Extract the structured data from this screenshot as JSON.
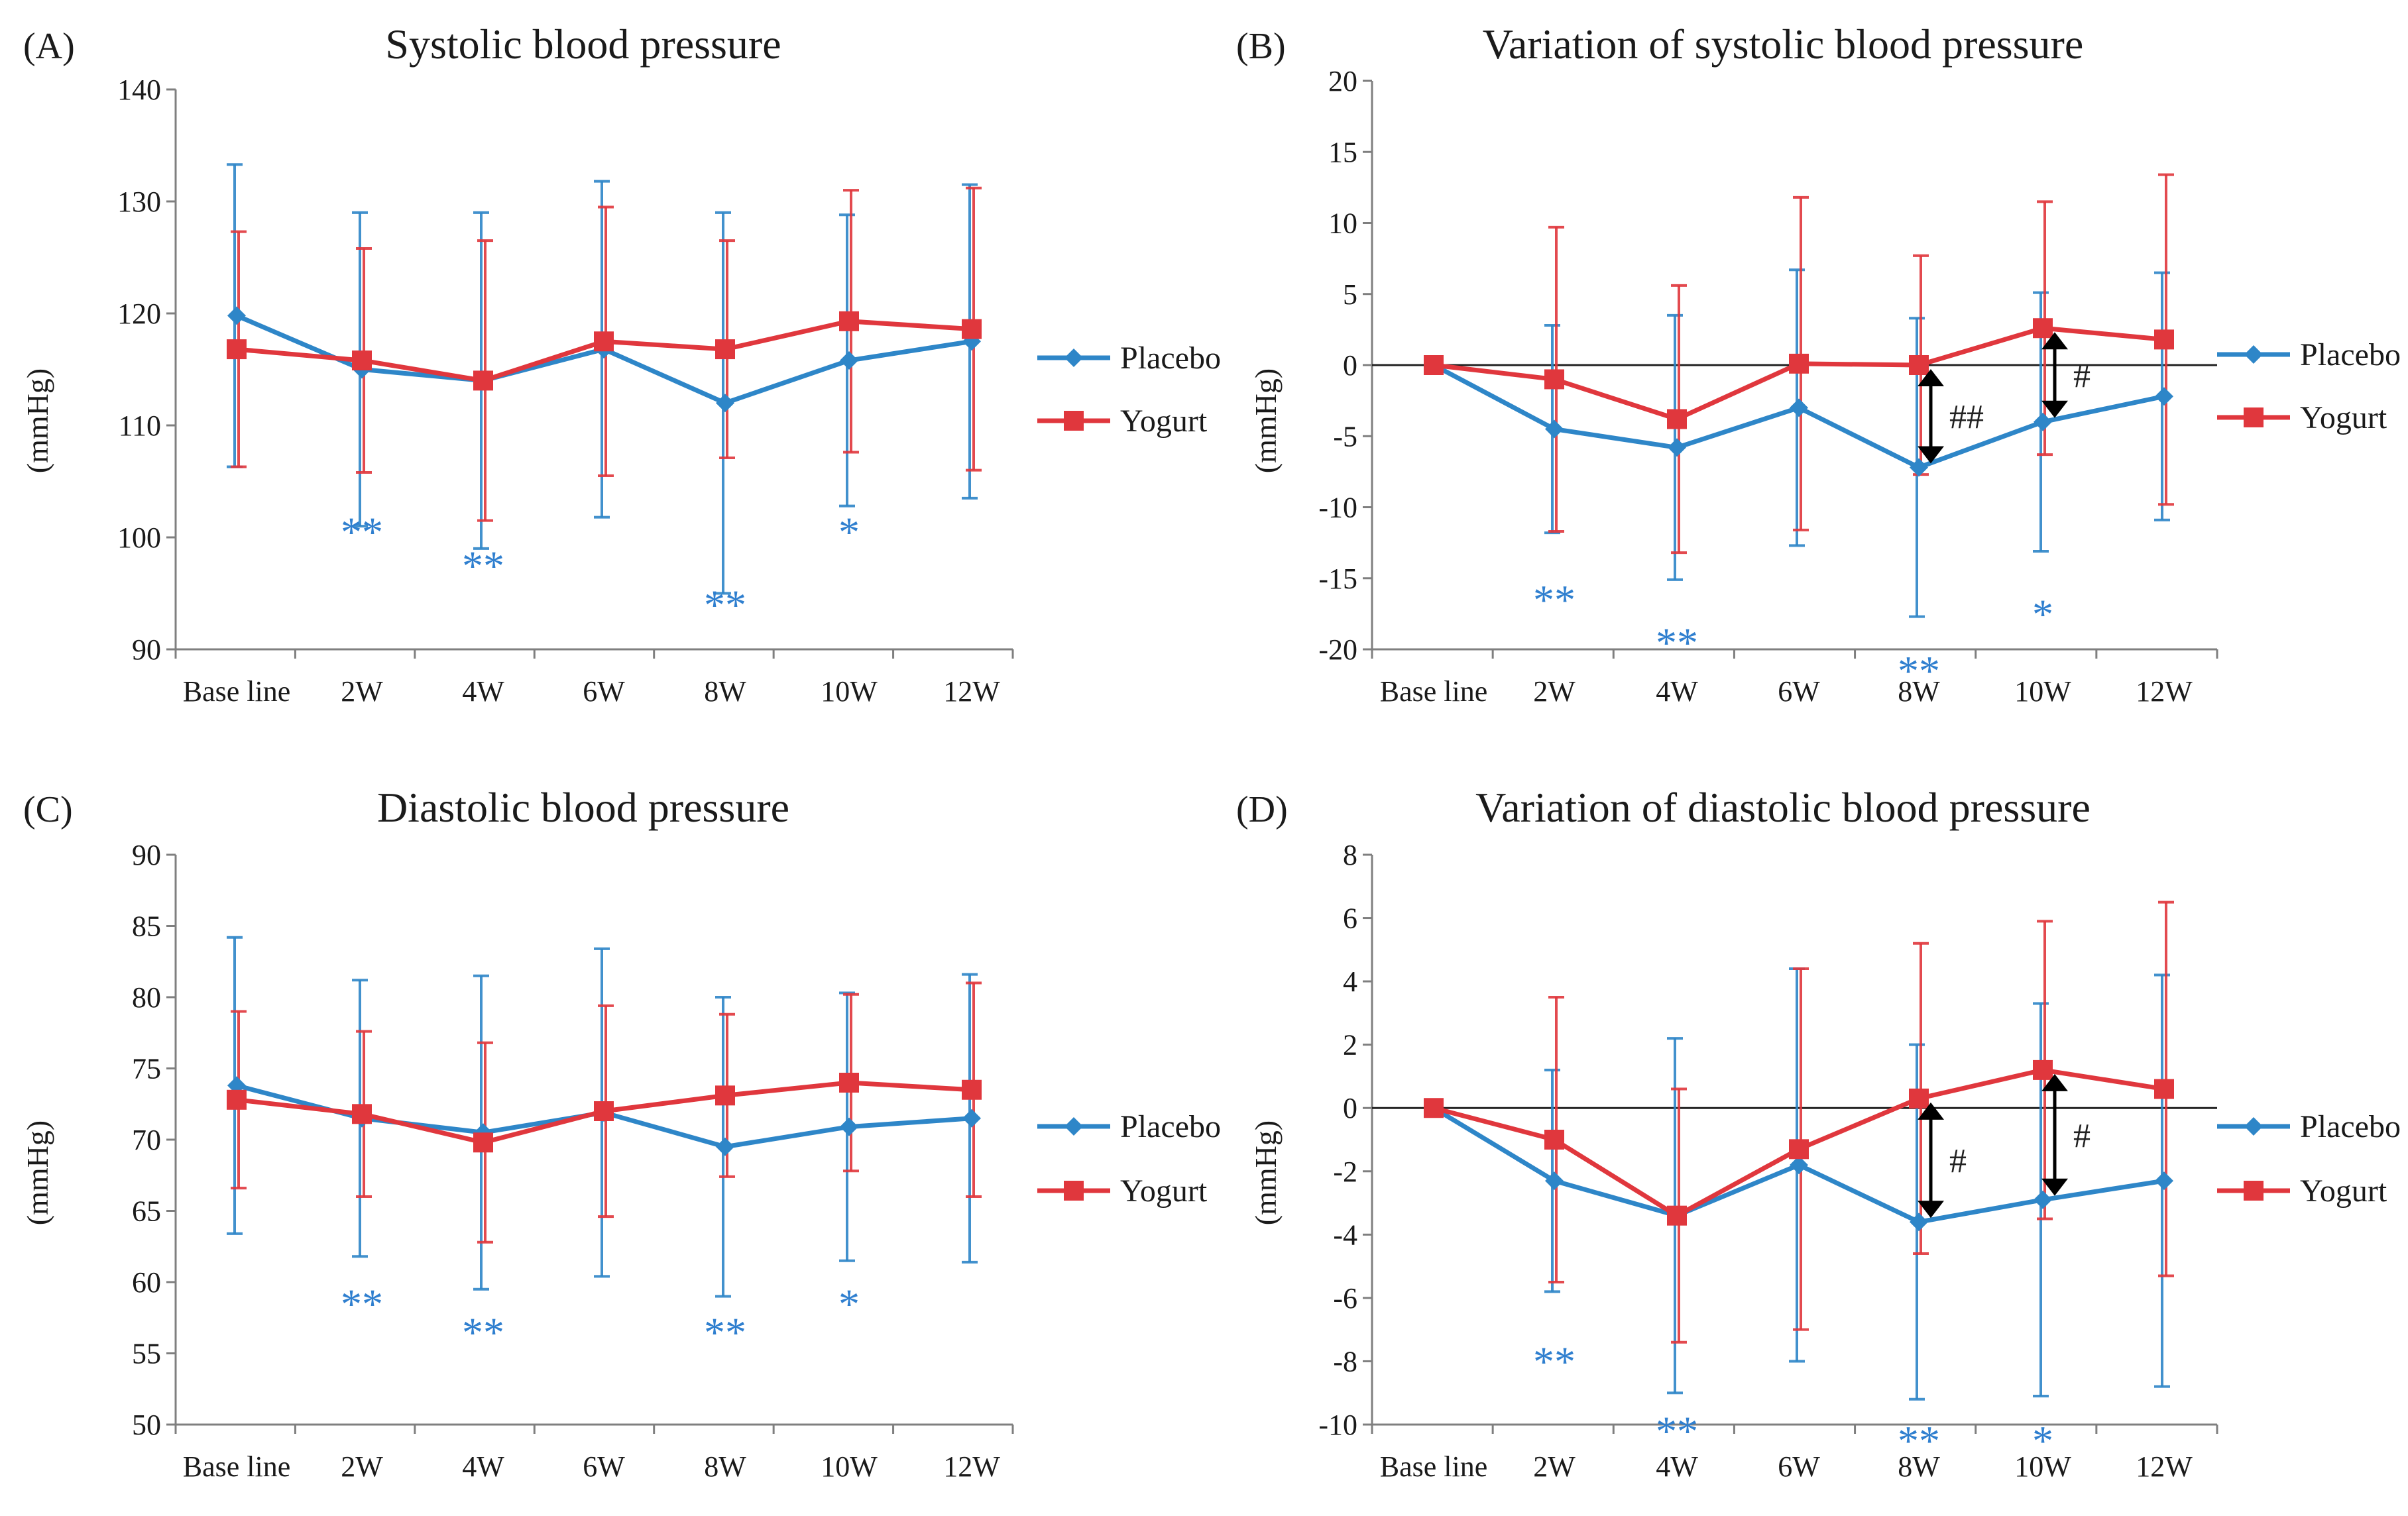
{
  "colors": {
    "placebo": "#2e86c8",
    "yogurt": "#e0373d",
    "sig": "#2f7fcf",
    "arrow": "#000000"
  },
  "chart_data": [
    {
      "panel": "(A)",
      "type": "line",
      "title": "Systolic blood pressure",
      "ylabel": "(mmHg)",
      "categories": [
        "Base line",
        "2W",
        "4W",
        "6W",
        "8W",
        "10W",
        "12W"
      ],
      "ylim": [
        90,
        140
      ],
      "yticks": [
        90,
        100,
        110,
        120,
        130,
        140
      ],
      "series": [
        {
          "name": "Placebo",
          "values": [
            119.8,
            115.0,
            114.0,
            116.8,
            112.0,
            115.8,
            117.5
          ],
          "err": [
            13.5,
            14.0,
            15.0,
            15.0,
            17.0,
            13.0,
            14.0
          ]
        },
        {
          "name": "Yogurt",
          "values": [
            116.8,
            115.8,
            114.0,
            117.5,
            116.8,
            119.3,
            118.6
          ],
          "err": [
            10.5,
            10.0,
            12.5,
            12.0,
            9.7,
            11.7,
            12.6
          ]
        }
      ],
      "significance": [
        {
          "category": "2W",
          "label": "**",
          "value": 100.5
        },
        {
          "category": "4W",
          "label": "**",
          "value": 97.5
        },
        {
          "category": "8W",
          "label": "**",
          "value": 94.0
        },
        {
          "category": "10W",
          "label": "*",
          "value": 100.5
        }
      ],
      "comparisons": [],
      "legend": [
        "Placebo",
        "Yogurt"
      ]
    },
    {
      "panel": "(B)",
      "type": "line",
      "title": "Variation of systolic blood pressure",
      "ylabel": "(mmHg)",
      "categories": [
        "Base line",
        "2W",
        "4W",
        "6W",
        "8W",
        "10W",
        "12W"
      ],
      "ylim": [
        -20,
        20
      ],
      "yticks": [
        -20,
        -15,
        -10,
        -5,
        0,
        5,
        10,
        15,
        20
      ],
      "zero_line": true,
      "series": [
        {
          "name": "Placebo",
          "values": [
            0,
            -4.5,
            -5.8,
            -3.0,
            -7.2,
            -4.0,
            -2.2
          ],
          "err": [
            0,
            7.3,
            9.3,
            9.7,
            10.5,
            9.1,
            8.7
          ]
        },
        {
          "name": "Yogurt",
          "values": [
            0,
            -1.0,
            -3.8,
            0.1,
            0.0,
            2.6,
            1.8
          ],
          "err": [
            0,
            10.7,
            9.4,
            11.7,
            7.7,
            8.9,
            11.6
          ]
        }
      ],
      "significance": [
        {
          "category": "2W",
          "label": "**",
          "value": -16.5
        },
        {
          "category": "4W",
          "label": "**",
          "value": -19.5
        },
        {
          "category": "8W",
          "label": "**",
          "value": -21.5
        },
        {
          "category": "10W",
          "label": "*",
          "value": -17.5
        }
      ],
      "comparisons": [
        {
          "category": "8W",
          "label": "##",
          "from": 0.0,
          "to": -7.2
        },
        {
          "category": "10W",
          "label": "#",
          "from": 2.6,
          "to": -4.0
        }
      ],
      "legend": [
        "Placebo",
        "Yogurt"
      ]
    },
    {
      "panel": "(C)",
      "type": "line",
      "title": "Diastolic blood pressure",
      "ylabel": "(mmHg)",
      "categories": [
        "Base line",
        "2W",
        "4W",
        "6W",
        "8W",
        "10W",
        "12W"
      ],
      "ylim": [
        50,
        90
      ],
      "yticks": [
        50,
        55,
        60,
        65,
        70,
        75,
        80,
        85,
        90
      ],
      "series": [
        {
          "name": "Placebo",
          "values": [
            73.8,
            71.5,
            70.5,
            71.9,
            69.5,
            70.9,
            71.5
          ],
          "err": [
            10.4,
            9.7,
            11.0,
            11.5,
            10.5,
            9.4,
            10.1
          ]
        },
        {
          "name": "Yogurt",
          "values": [
            72.8,
            71.8,
            69.8,
            72.0,
            73.1,
            74.0,
            73.5
          ],
          "err": [
            6.2,
            5.8,
            7.0,
            7.4,
            5.7,
            6.2,
            7.5
          ]
        }
      ],
      "significance": [
        {
          "category": "2W",
          "label": "**",
          "value": 58.5
        },
        {
          "category": "4W",
          "label": "**",
          "value": 56.5
        },
        {
          "category": "8W",
          "label": "**",
          "value": 56.5
        },
        {
          "category": "10W",
          "label": "*",
          "value": 58.5
        }
      ],
      "comparisons": [],
      "legend": [
        "Placebo",
        "Yogurt"
      ]
    },
    {
      "panel": "(D)",
      "type": "line",
      "title": "Variation of diastolic blood pressure",
      "ylabel": "(mmHg)",
      "categories": [
        "Base line",
        "2W",
        "4W",
        "6W",
        "8W",
        "10W",
        "12W"
      ],
      "ylim": [
        -10,
        8
      ],
      "yticks": [
        -10,
        -8,
        -6,
        -4,
        -2,
        0,
        2,
        4,
        6,
        8
      ],
      "zero_line": true,
      "series": [
        {
          "name": "Placebo",
          "values": [
            0,
            -2.3,
            -3.4,
            -1.8,
            -3.6,
            -2.9,
            -2.3
          ],
          "err": [
            0,
            3.5,
            5.6,
            6.2,
            5.6,
            6.2,
            6.5
          ]
        },
        {
          "name": "Yogurt",
          "values": [
            0,
            -1.0,
            -3.4,
            -1.3,
            0.3,
            1.2,
            0.6
          ],
          "err": [
            0,
            4.5,
            4.0,
            5.7,
            4.9,
            4.7,
            5.9
          ]
        }
      ],
      "significance": [
        {
          "category": "2W",
          "label": "**",
          "value": -8.0
        },
        {
          "category": "4W",
          "label": "**",
          "value": -10.2
        },
        {
          "category": "8W",
          "label": "**",
          "value": -10.5
        },
        {
          "category": "10W",
          "label": "*",
          "value": -10.5
        }
      ],
      "comparisons": [
        {
          "category": "8W",
          "label": "#",
          "from": 0.3,
          "to": -3.6
        },
        {
          "category": "10W",
          "label": "#",
          "from": 1.2,
          "to": -2.9
        }
      ],
      "legend": [
        "Placebo",
        "Yogurt"
      ]
    }
  ]
}
